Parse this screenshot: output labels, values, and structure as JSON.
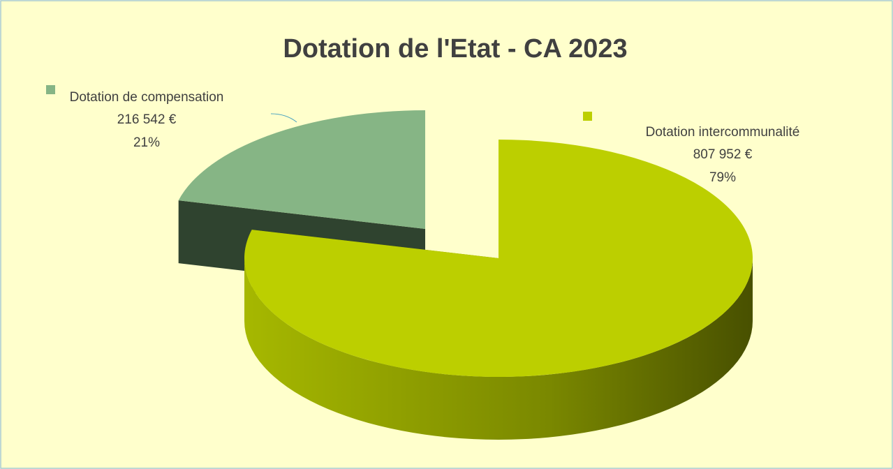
{
  "chart_data": {
    "type": "pie",
    "title": "Dotation de l'Etat - CA 2023",
    "categories": [
      "Dotation de compensation",
      "Dotation intercommunalité"
    ],
    "values": [
      216542,
      807952
    ],
    "value_labels": [
      "216 542 €",
      "807 952 €"
    ],
    "percents": [
      21,
      79
    ],
    "percent_labels": [
      "21%",
      "79%"
    ],
    "colors": [
      "#86b585",
      "#bccf00"
    ]
  }
}
